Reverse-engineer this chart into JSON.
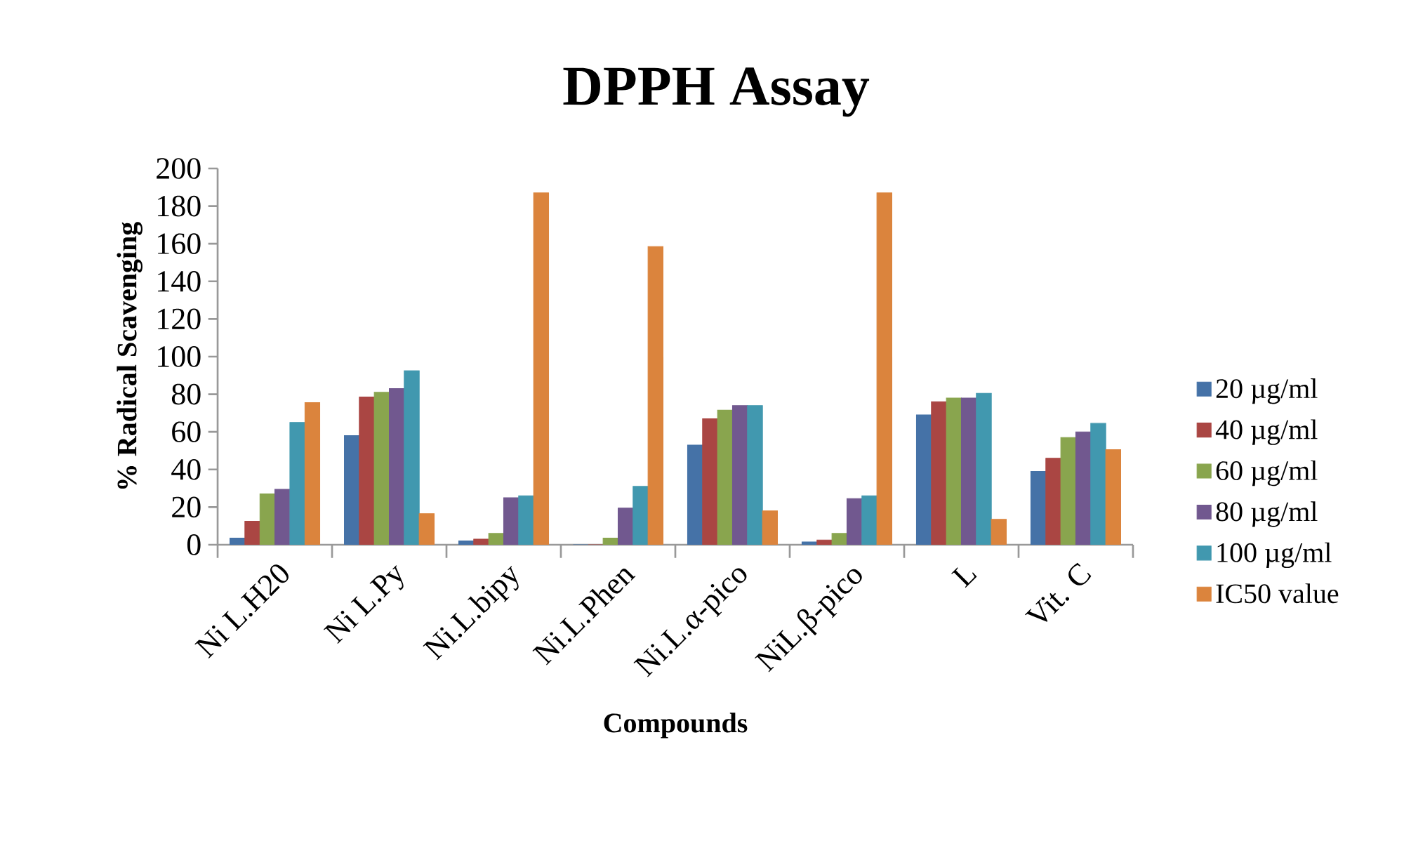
{
  "chart_data": {
    "type": "bar",
    "title": "DPPH Assay",
    "xlabel": "Compounds",
    "ylabel": "% Radical Scavenging",
    "categories": [
      "Ni L.H20",
      "Ni L.Py",
      "Ni.L.bipy",
      "Ni.L.Phen",
      "Ni.L.α-pico",
      "NiL.β-pico",
      "L",
      "Vit. C"
    ],
    "series": [
      {
        "name": "20 µg/ml",
        "color": "#4572a7",
        "values": [
          3.5,
          58,
          2,
          0,
          53,
          1.5,
          69,
          39
        ]
      },
      {
        "name": "40 µg/ml",
        "color": "#aa4643",
        "values": [
          12.5,
          78.5,
          3,
          0,
          67,
          2.5,
          76,
          46
        ]
      },
      {
        "name": "60 µg/ml",
        "color": "#89a54e",
        "values": [
          27,
          81,
          6,
          3.5,
          71.5,
          6,
          78,
          57
        ]
      },
      {
        "name": "80 µg/ml",
        "color": "#71588f",
        "values": [
          29.5,
          83,
          25,
          19.5,
          74,
          24.5,
          78,
          60
        ]
      },
      {
        "name": "100 µg/ml",
        "color": "#4198af",
        "values": [
          65,
          92.5,
          26,
          31,
          74,
          26,
          80.5,
          64.5
        ]
      },
      {
        "name": "IC50 value",
        "color": "#db843d",
        "values": [
          75.5,
          16.5,
          187,
          158.5,
          18,
          187,
          13.5,
          50.5
        ]
      }
    ],
    "ylim": [
      0,
      200
    ],
    "yticks": [
      0,
      20,
      40,
      60,
      80,
      100,
      120,
      140,
      160,
      180,
      200
    ],
    "legend": "right"
  }
}
